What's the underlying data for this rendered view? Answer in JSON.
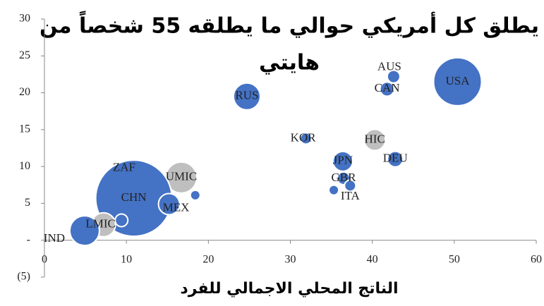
{
  "chart_data": {
    "type": "bubble",
    "title_lines": [
      "يطلق كل أمريكي حوالي ما يطلقه 55 شخصاً من",
      "هايتي"
    ],
    "x_label": "الناتج المحلي الاجمالي للفرد",
    "xlim": [
      0,
      60
    ],
    "xticks": [
      0,
      10,
      20,
      30,
      40,
      50,
      60
    ],
    "ylim": [
      -5,
      30
    ],
    "yticks": [
      {
        "value": -5,
        "label": "(5)"
      },
      {
        "value": 0,
        "label": "-"
      },
      5,
      10,
      15,
      20,
      25,
      30
    ],
    "labels": [
      "USA",
      "AUS",
      "CAN",
      "RUS",
      "KOR",
      "HIC",
      "DEU",
      "JPN",
      "GBR",
      "ITA",
      null,
      "ZAF",
      "UMIC",
      null,
      "CHN",
      "MEX",
      "LMIC",
      null,
      "IND"
    ],
    "x": [
      50.4,
      42.6,
      41.8,
      24.7,
      31.9,
      40.3,
      42.8,
      36.4,
      36.5,
      37.3,
      35.3,
      12.3,
      16.7,
      18.4,
      10.9,
      15.2,
      7.2,
      9.4,
      4.9
    ],
    "y": [
      21.5,
      22.2,
      20.5,
      19.5,
      13.8,
      13.6,
      11.0,
      10.7,
      8.4,
      7.4,
      6.8,
      9.3,
      8.5,
      6.1,
      5.7,
      4.9,
      2.1,
      2.7,
      1.3
    ],
    "sizes": [
      34,
      9,
      10,
      19,
      8,
      15,
      11,
      14,
      9,
      8,
      7,
      8,
      22,
      7,
      54,
      15,
      17,
      9,
      21
    ],
    "colors": [
      "#4472c4",
      "#4472c4",
      "#4472c4",
      "#4472c4",
      "#4472c4",
      "#bfbfbf",
      "#4472c4",
      "#4472c4",
      "#4472c4",
      "#4472c4",
      "#4472c4",
      "#4472c4",
      "#bfbfbf",
      "#4472c4",
      "#4472c4",
      "#4472c4",
      "#bfbfbf",
      "#4472c4",
      "#4472c4"
    ]
  }
}
